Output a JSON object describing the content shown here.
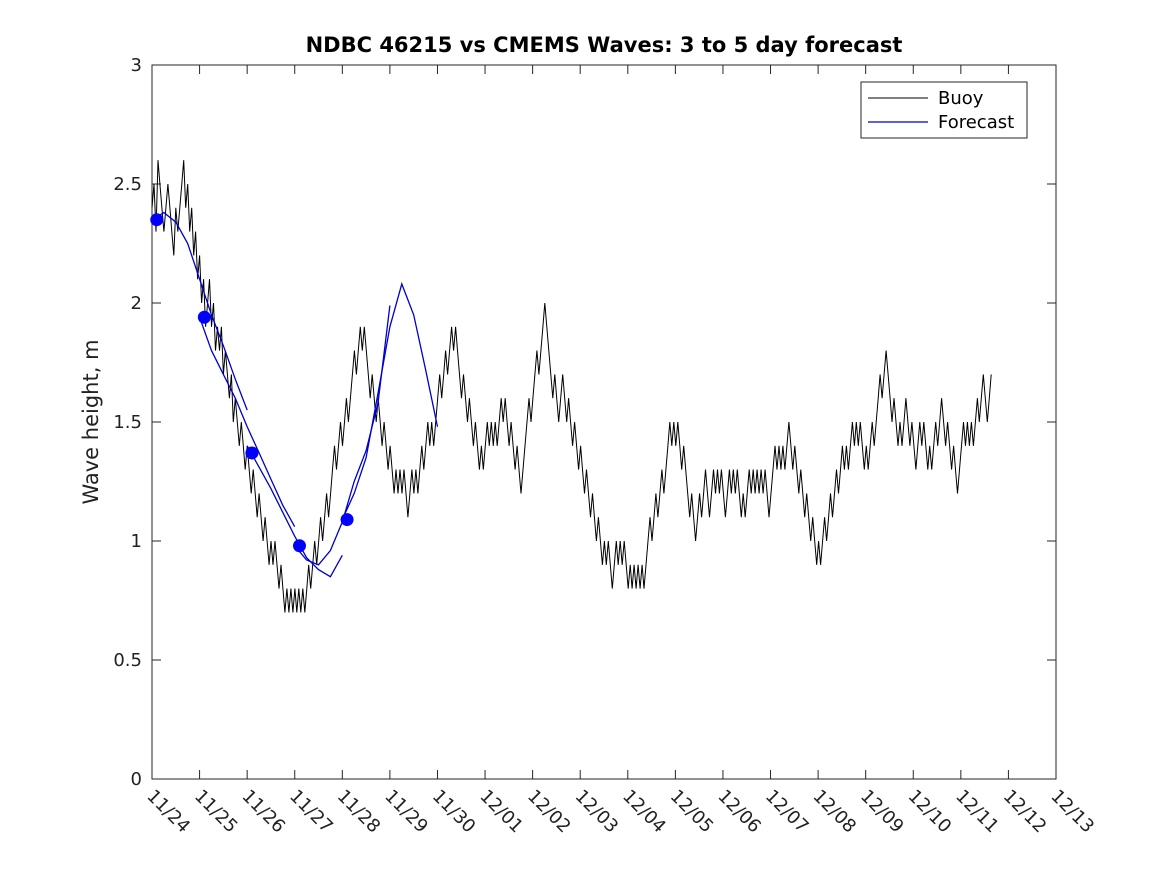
{
  "chart_data": {
    "type": "line",
    "title": "NDBC 46215 vs CMEMS Waves: 3 to 5 day forecast",
    "xlabel": "",
    "ylabel": "Wave height, m",
    "xlim": [
      0,
      19
    ],
    "ylim": [
      0,
      3
    ],
    "yticks": [
      0,
      0.5,
      1,
      1.5,
      2,
      2.5,
      3
    ],
    "ytick_labels": [
      "0",
      "0.5",
      "1",
      "1.5",
      "2",
      "2.5",
      "3"
    ],
    "xtick_labels": [
      "11/24",
      "11/25",
      "11/26",
      "11/27",
      "11/28",
      "11/29",
      "11/30",
      "12/01",
      "12/02",
      "12/03",
      "12/04",
      "12/05",
      "12/06",
      "12/07",
      "12/08",
      "12/09",
      "12/10",
      "12/11",
      "12/12",
      "12/13"
    ],
    "legend": {
      "position": "top-right",
      "entries": [
        "Buoy",
        "Forecast"
      ]
    },
    "colors": {
      "buoy": "#000000",
      "forecast": "#0000cc",
      "markers": "#0000ff",
      "axes": "#262626"
    },
    "series": [
      {
        "name": "Buoy",
        "x_start": 0,
        "x_step": 0.0417,
        "values": [
          2.4,
          2.5,
          2.3,
          2.6,
          2.5,
          2.4,
          2.3,
          2.4,
          2.5,
          2.4,
          2.3,
          2.2,
          2.4,
          2.3,
          2.4,
          2.5,
          2.6,
          2.4,
          2.5,
          2.3,
          2.4,
          2.2,
          2.3,
          2.1,
          2.2,
          2.0,
          2.1,
          1.9,
          2.0,
          2.1,
          1.9,
          2.0,
          1.8,
          1.9,
          1.8,
          1.9,
          1.7,
          1.8,
          1.7,
          1.6,
          1.7,
          1.5,
          1.6,
          1.5,
          1.4,
          1.5,
          1.4,
          1.3,
          1.4,
          1.3,
          1.2,
          1.3,
          1.2,
          1.1,
          1.2,
          1.1,
          1.0,
          1.1,
          1.0,
          0.9,
          1.0,
          0.9,
          1.0,
          0.9,
          0.8,
          0.9,
          0.8,
          0.7,
          0.8,
          0.7,
          0.8,
          0.7,
          0.8,
          0.7,
          0.8,
          0.7,
          0.8,
          0.7,
          0.8,
          0.9,
          0.8,
          0.9,
          1.0,
          0.9,
          1.0,
          1.1,
          1.0,
          1.1,
          1.2,
          1.1,
          1.2,
          1.3,
          1.4,
          1.3,
          1.4,
          1.5,
          1.4,
          1.5,
          1.6,
          1.5,
          1.6,
          1.7,
          1.8,
          1.7,
          1.8,
          1.9,
          1.8,
          1.9,
          1.8,
          1.7,
          1.6,
          1.7,
          1.6,
          1.5,
          1.6,
          1.5,
          1.4,
          1.5,
          1.4,
          1.3,
          1.4,
          1.3,
          1.2,
          1.3,
          1.2,
          1.3,
          1.2,
          1.3,
          1.2,
          1.1,
          1.2,
          1.3,
          1.2,
          1.3,
          1.2,
          1.3,
          1.4,
          1.3,
          1.4,
          1.5,
          1.4,
          1.5,
          1.4,
          1.5,
          1.6,
          1.7,
          1.6,
          1.7,
          1.8,
          1.7,
          1.8,
          1.9,
          1.8,
          1.9,
          1.8,
          1.7,
          1.6,
          1.7,
          1.6,
          1.5,
          1.6,
          1.5,
          1.4,
          1.5,
          1.4,
          1.3,
          1.4,
          1.3,
          1.4,
          1.5,
          1.4,
          1.5,
          1.4,
          1.5,
          1.4,
          1.5,
          1.6,
          1.5,
          1.6,
          1.5,
          1.4,
          1.5,
          1.4,
          1.3,
          1.4,
          1.3,
          1.2,
          1.3,
          1.4,
          1.5,
          1.6,
          1.5,
          1.6,
          1.7,
          1.8,
          1.7,
          1.8,
          1.9,
          2.0,
          1.9,
          1.8,
          1.7,
          1.6,
          1.7,
          1.6,
          1.5,
          1.6,
          1.7,
          1.6,
          1.5,
          1.6,
          1.5,
          1.4,
          1.5,
          1.4,
          1.3,
          1.4,
          1.3,
          1.2,
          1.3,
          1.2,
          1.1,
          1.2,
          1.1,
          1.0,
          1.1,
          1.0,
          0.9,
          1.0,
          0.9,
          1.0,
          0.9,
          0.8,
          0.9,
          1.0,
          0.9,
          1.0,
          0.9,
          1.0,
          0.9,
          0.8,
          0.9,
          0.8,
          0.9,
          0.8,
          0.9,
          0.8,
          0.9,
          0.8,
          0.9,
          1.0,
          1.1,
          1.0,
          1.1,
          1.2,
          1.1,
          1.2,
          1.3,
          1.2,
          1.3,
          1.4,
          1.5,
          1.4,
          1.5,
          1.4,
          1.5,
          1.4,
          1.3,
          1.4,
          1.3,
          1.2,
          1.1,
          1.2,
          1.1,
          1.0,
          1.1,
          1.2,
          1.1,
          1.2,
          1.3,
          1.2,
          1.1,
          1.2,
          1.3,
          1.2,
          1.3,
          1.2,
          1.3,
          1.2,
          1.1,
          1.2,
          1.3,
          1.2,
          1.3,
          1.2,
          1.3,
          1.2,
          1.1,
          1.2,
          1.1,
          1.2,
          1.3,
          1.2,
          1.3,
          1.2,
          1.3,
          1.2,
          1.3,
          1.2,
          1.3,
          1.2,
          1.1,
          1.2,
          1.3,
          1.4,
          1.3,
          1.4,
          1.3,
          1.4,
          1.3,
          1.4,
          1.5,
          1.4,
          1.3,
          1.4,
          1.3,
          1.2,
          1.3,
          1.2,
          1.1,
          1.2,
          1.1,
          1.0,
          1.1,
          1.0,
          0.9,
          1.0,
          0.9,
          1.0,
          1.1,
          1.0,
          1.1,
          1.2,
          1.1,
          1.2,
          1.3,
          1.2,
          1.3,
          1.4,
          1.3,
          1.4,
          1.3,
          1.4,
          1.5,
          1.4,
          1.5,
          1.4,
          1.5,
          1.4,
          1.3,
          1.4,
          1.3,
          1.4,
          1.5,
          1.4,
          1.5,
          1.6,
          1.7,
          1.6,
          1.7,
          1.8,
          1.7,
          1.6,
          1.5,
          1.6,
          1.5,
          1.4,
          1.5,
          1.4,
          1.5,
          1.6,
          1.5,
          1.4,
          1.5,
          1.4,
          1.3,
          1.4,
          1.5,
          1.4,
          1.5,
          1.4,
          1.3,
          1.4,
          1.3,
          1.4,
          1.5,
          1.4,
          1.5,
          1.6,
          1.5,
          1.4,
          1.5,
          1.4,
          1.3,
          1.4,
          1.3,
          1.2,
          1.3,
          1.4,
          1.5,
          1.4,
          1.5,
          1.4,
          1.5,
          1.4,
          1.5,
          1.6,
          1.5,
          1.6,
          1.7,
          1.6,
          1.5,
          1.6,
          1.7
        ]
      },
      {
        "name": "Forecast",
        "segments": [
          {
            "x": [
              0,
              0.25,
              0.5,
              0.75,
              1.0,
              1.25,
              1.5,
              1.75,
              2.0
            ],
            "y": [
              2.35,
              2.38,
              2.34,
              2.25,
              2.1,
              1.95,
              1.82,
              1.68,
              1.55
            ]
          },
          {
            "x": [
              1.0,
              1.25,
              1.5,
              1.75,
              2.0,
              2.25,
              2.5,
              2.75,
              3.0
            ],
            "y": [
              1.94,
              1.8,
              1.7,
              1.6,
              1.48,
              1.37,
              1.26,
              1.15,
              1.06
            ]
          },
          {
            "x": [
              2.0,
              2.25,
              2.5,
              2.75,
              3.0,
              3.25,
              3.5,
              3.75,
              4.0
            ],
            "y": [
              1.4,
              1.31,
              1.22,
              1.12,
              1.02,
              0.93,
              0.88,
              0.85,
              0.94
            ]
          },
          {
            "x": [
              3.0,
              3.25,
              3.5,
              3.75,
              4.0,
              4.25,
              4.5,
              4.75,
              5.0
            ],
            "y": [
              0.98,
              0.92,
              0.9,
              0.96,
              1.08,
              1.25,
              1.38,
              1.58,
              1.99
            ]
          },
          {
            "x": [
              4.0,
              4.25,
              4.5,
              4.75,
              5.0,
              5.25,
              5.5,
              5.75,
              6.0
            ],
            "y": [
              1.09,
              1.2,
              1.35,
              1.62,
              1.9,
              2.08,
              1.95,
              1.72,
              1.48
            ]
          }
        ]
      }
    ],
    "markers": {
      "x": [
        0.1,
        1.1,
        2.1,
        3.1,
        4.1
      ],
      "y": [
        2.35,
        1.94,
        1.37,
        0.98,
        1.09
      ]
    }
  }
}
